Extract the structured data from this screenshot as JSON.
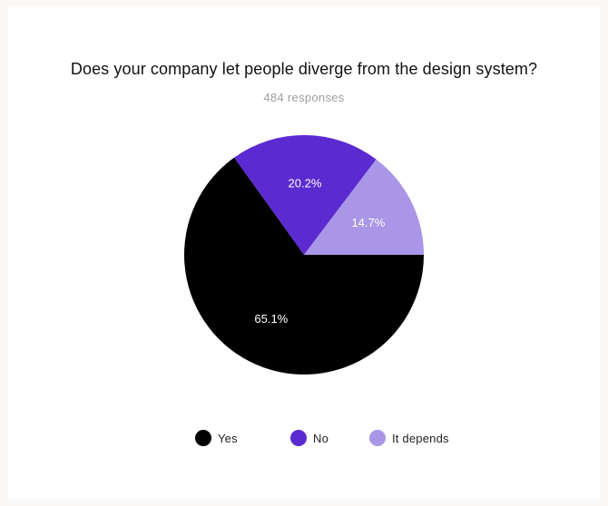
{
  "title": "Does your company let people diverge from the design system?",
  "subtitle": "484 responses",
  "chart_data": {
    "type": "pie",
    "title": "Does your company let people diverge from the design system?",
    "subtitle": "484 responses",
    "slices": [
      {
        "name": "Yes",
        "value": 65.1,
        "label": "65.1%",
        "color": "#000000",
        "label_color": "#ffffff"
      },
      {
        "name": "No",
        "value": 20.2,
        "label": "20.2%",
        "color": "#5b2bd1",
        "label_color": "#ffffff"
      },
      {
        "name": "It depends",
        "value": 14.7,
        "label": "14.7%",
        "color": "#a996e6",
        "label_color": "#ffffff"
      }
    ],
    "legend_position": "bottom"
  }
}
